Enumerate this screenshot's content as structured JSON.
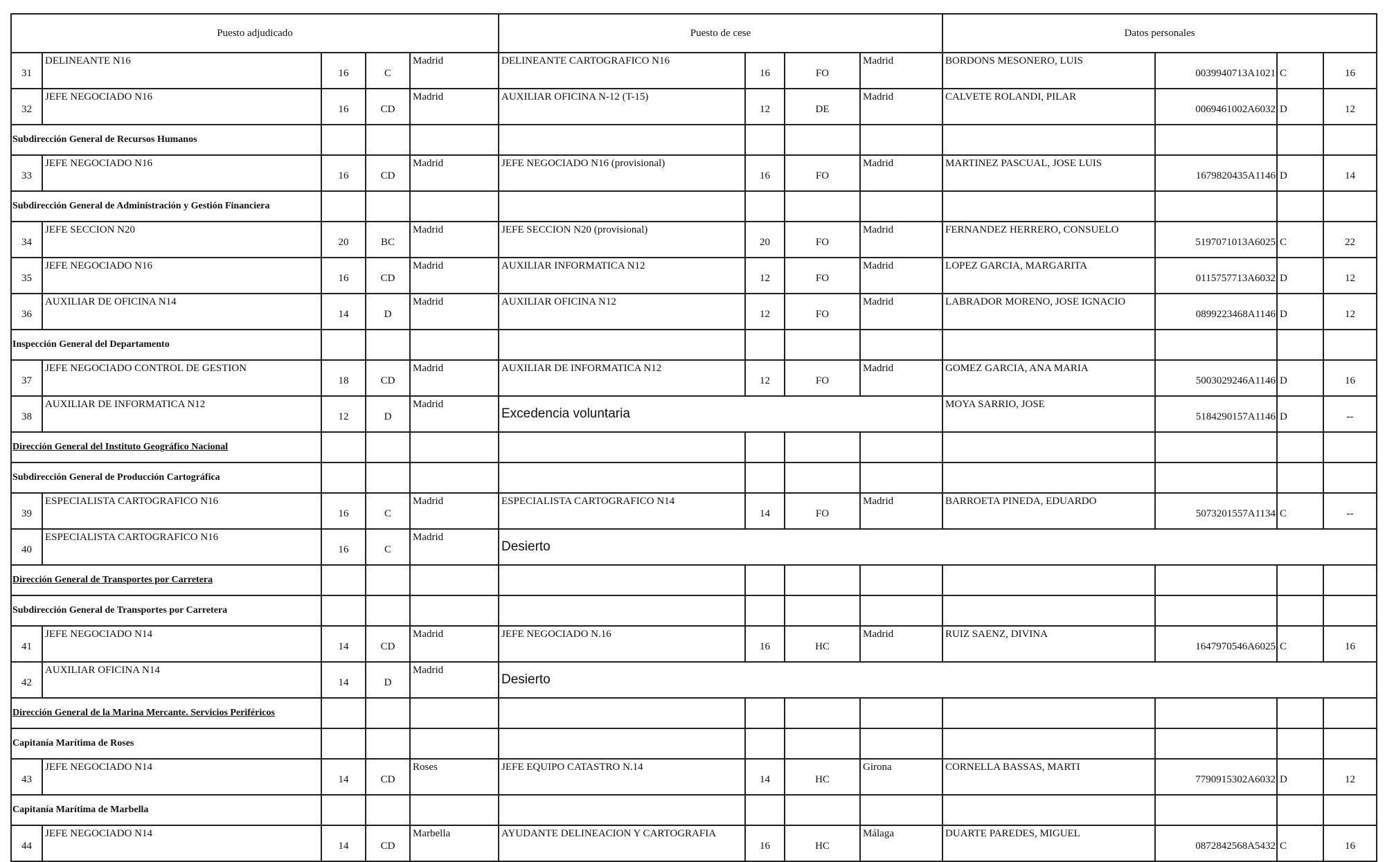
{
  "headers": {
    "adjudicado": "Puesto adjudicado",
    "cese": "Puesto de cese",
    "personales": "Datos personales"
  },
  "rows": [
    {
      "type": "data",
      "num": "31",
      "puesto": "DELINEANTE N16",
      "nivel": "16",
      "grupo": "C",
      "loc": "Madrid",
      "cese_puesto": "DELINEANTE CARTOGRAFICO N16",
      "cese_nivel": "16",
      "cese_grupo": "FO",
      "cese_loc": "Madrid",
      "nombre": "BORDONS MESONERO, LUIS",
      "nrp": "0039940713A1021",
      "cuerpo": "C",
      "grado": "16"
    },
    {
      "type": "data",
      "num": "32",
      "puesto": "JEFE NEGOCIADO N16",
      "nivel": "16",
      "grupo": "CD",
      "loc": "Madrid",
      "cese_puesto": "AUXILIAR OFICINA N-12 (T-15)",
      "cese_nivel": "12",
      "cese_grupo": "DE",
      "cese_loc": "Madrid",
      "nombre": "CALVETE ROLANDI, PILAR",
      "nrp": "0069461002A6032",
      "cuerpo": "D",
      "grado": "12"
    },
    {
      "type": "section",
      "text": "Subdirección General de Recursos Humanos",
      "underline": false
    },
    {
      "type": "data",
      "num": "33",
      "puesto": "JEFE NEGOCIADO N16",
      "nivel": "16",
      "grupo": "CD",
      "loc": "Madrid",
      "cese_puesto": "JEFE NEGOCIADO N16 (provisional)",
      "cese_nivel": "16",
      "cese_grupo": "FO",
      "cese_loc": "Madrid",
      "nombre": "MARTINEZ PASCUAL, JOSE LUIS",
      "nrp": "1679820435A1146",
      "cuerpo": "D",
      "grado": "14"
    },
    {
      "type": "section",
      "text": "Subdirección General de Administración y Gestión Financiera",
      "underline": false
    },
    {
      "type": "data",
      "num": "34",
      "puesto": "JEFE SECCION N20",
      "nivel": "20",
      "grupo": "BC",
      "loc": "Madrid",
      "cese_puesto": "JEFE SECCION N20 (provisional)",
      "cese_nivel": "20",
      "cese_grupo": "FO",
      "cese_loc": "Madrid",
      "nombre": "FERNANDEZ HERRERO, CONSUELO",
      "nrp": "5197071013A6025",
      "cuerpo": "C",
      "grado": "22"
    },
    {
      "type": "data",
      "num": "35",
      "puesto": "JEFE NEGOCIADO N16",
      "nivel": "16",
      "grupo": "CD",
      "loc": "Madrid",
      "cese_puesto": "AUXILIAR INFORMATICA N12",
      "cese_nivel": "12",
      "cese_grupo": "FO",
      "cese_loc": "Madrid",
      "nombre": "LOPEZ GARCIA, MARGARITA",
      "nrp": "0115757713A6032",
      "cuerpo": "D",
      "grado": "12"
    },
    {
      "type": "data",
      "num": "36",
      "puesto": "AUXILIAR DE OFICINA N14",
      "nivel": "14",
      "grupo": "D",
      "loc": "Madrid",
      "cese_puesto": "AUXILIAR OFICINA N12",
      "cese_nivel": "12",
      "cese_grupo": "FO",
      "cese_loc": "Madrid",
      "nombre": "LABRADOR MORENO, JOSE IGNACIO",
      "nrp": "0899223468A1146",
      "cuerpo": "D",
      "grado": "12"
    },
    {
      "type": "section",
      "text": "Inspección General del Departamento",
      "underline": false
    },
    {
      "type": "data",
      "num": "37",
      "puesto": "JEFE NEGOCIADO CONTROL DE GESTION",
      "nivel": "18",
      "grupo": "CD",
      "loc": "Madrid",
      "cese_puesto": "AUXILIAR DE INFORMATICA N12",
      "cese_nivel": "12",
      "cese_grupo": "FO",
      "cese_loc": "Madrid",
      "nombre": "GOMEZ GARCIA, ANA MARIA",
      "nrp": "5003029246A1146",
      "cuerpo": "D",
      "grado": "16"
    },
    {
      "type": "excedencia",
      "num": "38",
      "puesto": "AUXILIAR DE INFORMATICA N12",
      "nivel": "12",
      "grupo": "D",
      "loc": "Madrid",
      "status": "Excedencia voluntaria",
      "nombre": "MOYA SARRIO, JOSE",
      "nrp": "5184290157A1146",
      "cuerpo": "D",
      "grado": "--"
    },
    {
      "type": "section",
      "text": "Dirección General del Instituto Geográfico Nacional",
      "underline": true
    },
    {
      "type": "section",
      "text": "Subdirección General de Producción Cartográfica",
      "underline": false
    },
    {
      "type": "data",
      "num": "39",
      "puesto": "ESPECIALISTA CARTOGRAFICO N16",
      "nivel": "16",
      "grupo": "C",
      "loc": "Madrid",
      "cese_puesto": "ESPECIALISTA CARTOGRAFICO N14",
      "cese_nivel": "14",
      "cese_grupo": "FO",
      "cese_loc": "Madrid",
      "nombre": "BARROETA PINEDA, EDUARDO",
      "nrp": "5073201557A1134",
      "cuerpo": "C",
      "grado": "--"
    },
    {
      "type": "desierto",
      "num": "40",
      "puesto": "ESPECIALISTA CARTOGRAFICO N16",
      "nivel": "16",
      "grupo": "C",
      "loc": "Madrid",
      "status": "Desierto"
    },
    {
      "type": "section",
      "text": "Dirección General de Transportes por Carretera",
      "underline": true
    },
    {
      "type": "section",
      "text": "Subdirección General de Transportes por Carretera",
      "underline": false
    },
    {
      "type": "data",
      "num": "41",
      "puesto": "JEFE NEGOCIADO N14",
      "nivel": "14",
      "grupo": "CD",
      "loc": "Madrid",
      "cese_puesto": "JEFE NEGOCIADO N.16",
      "cese_nivel": "16",
      "cese_grupo": "HC",
      "cese_loc": "Madrid",
      "nombre": "RUIZ SAENZ, DIVINA",
      "nrp": "1647970546A6025",
      "cuerpo": "C",
      "grado": "16"
    },
    {
      "type": "desierto",
      "num": "42",
      "puesto": "AUXILIAR OFICINA N14",
      "nivel": "14",
      "grupo": "D",
      "loc": "Madrid",
      "status": "Desierto"
    },
    {
      "type": "section",
      "text": "Dirección General de la  Marina Mercante. Servicios Periféricos",
      "underline": true
    },
    {
      "type": "section",
      "text": "Capitanía Marítima de Roses",
      "underline": false
    },
    {
      "type": "data",
      "num": "43",
      "puesto": "JEFE NEGOCIADO N14",
      "nivel": "14",
      "grupo": "CD",
      "loc": "Roses",
      "cese_puesto": "JEFE EQUIPO CATASTRO N.14",
      "cese_nivel": "14",
      "cese_grupo": "HC",
      "cese_loc": "Girona",
      "nombre": "CORNELLA BASSAS, MARTI",
      "nrp": "7790915302A6032",
      "cuerpo": "D",
      "grado": "12"
    },
    {
      "type": "section",
      "text": "Capitanía Marítima de Marbella",
      "underline": false
    },
    {
      "type": "data",
      "num": "44",
      "puesto": "JEFE NEGOCIADO N14",
      "nivel": "14",
      "grupo": "CD",
      "loc": "Marbella",
      "cese_puesto": "AYUDANTE DELINEACION Y CARTOGRAFIA",
      "cese_nivel": "16",
      "cese_grupo": "HC",
      "cese_loc": "Málaga",
      "nombre": "DUARTE PAREDES, MIGUEL",
      "nrp": "0872842568A5432",
      "cuerpo": "C",
      "grado": "16"
    }
  ]
}
